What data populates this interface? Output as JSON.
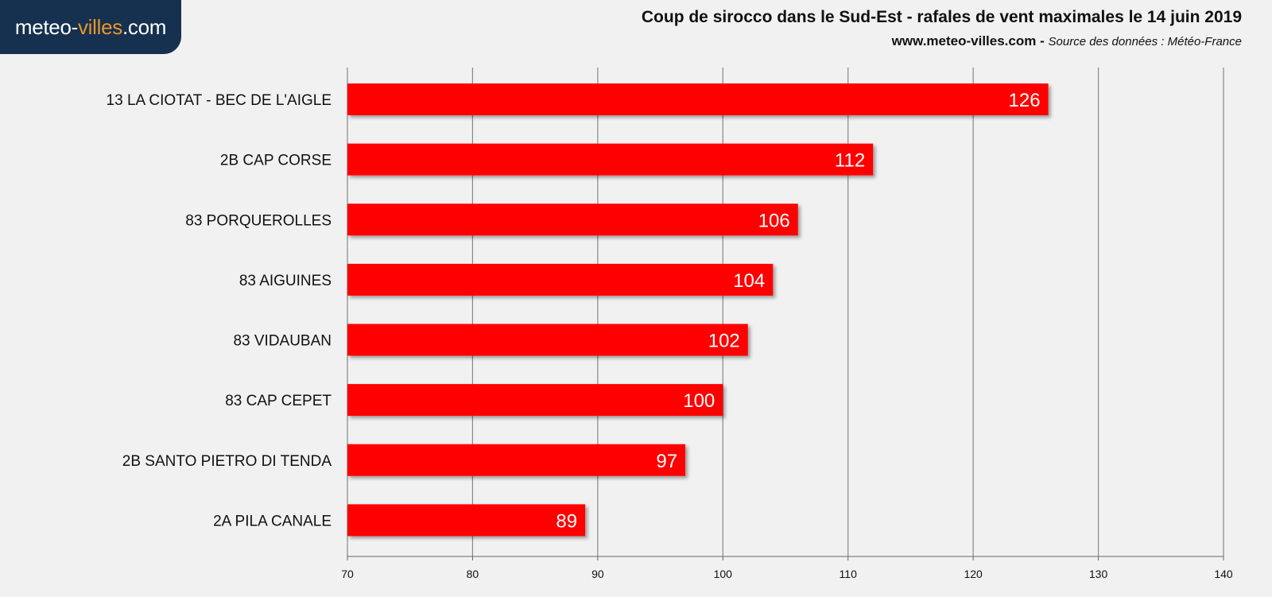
{
  "logo": {
    "part1": "meteo-",
    "part2": "villes",
    "part3": ".com"
  },
  "header": {
    "title": "Coup de sirocco dans le Sud-Est - rafales de vent maximales le 14 juin 2019",
    "site": "www.meteo-villes.com",
    "separator": "-",
    "source": "Source des données : Météo-France"
  },
  "colors": {
    "bar": "#ff0000",
    "logo_bg": "#16304f",
    "logo_accent": "#e8962a",
    "grid": "#888888"
  },
  "chart_data": {
    "type": "bar",
    "orientation": "horizontal",
    "title": "Coup de sirocco dans le Sud-Est - rafales de vent maximales le 14 juin 2019",
    "categories": [
      "13 LA CIOTAT - BEC DE L'AIGLE",
      "2B CAP CORSE",
      "83 PORQUEROLLES",
      "83 AIGUINES",
      "83 VIDAUBAN",
      "83 CAP CEPET ",
      "2B SANTO PIETRO DI TENDA",
      "2A PILA CANALE"
    ],
    "values": [
      126,
      112,
      106,
      104,
      102,
      100,
      97,
      89
    ],
    "xlim": [
      70,
      140
    ],
    "xticks": [
      70,
      80,
      90,
      100,
      110,
      120,
      130,
      140
    ],
    "grid": true,
    "data_labels": true
  }
}
